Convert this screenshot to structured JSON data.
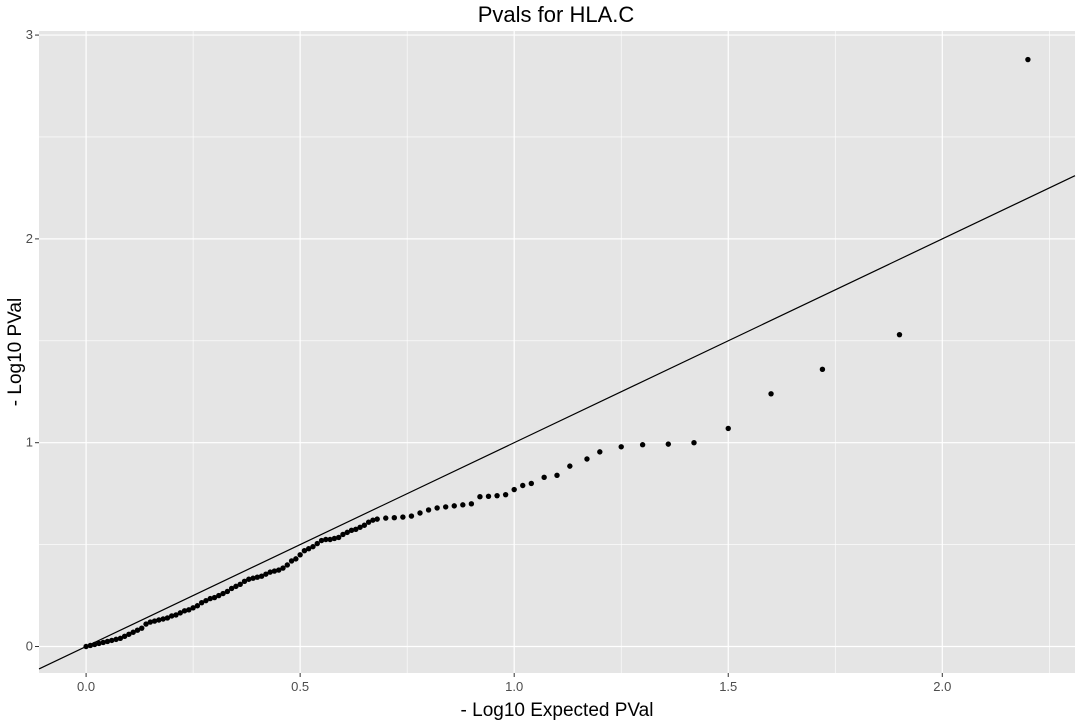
{
  "chart_data": {
    "type": "scatter",
    "title": "Pvals for HLA.C",
    "xlabel": "- Log10 Expected PVal",
    "ylabel": "- Log10 PVal",
    "xlim": [
      -0.11,
      2.31
    ],
    "ylim": [
      -0.13,
      3.02
    ],
    "x_ticks": [
      "0.0",
      "0.5",
      "1.0",
      "1.5",
      "2.0"
    ],
    "x_tick_values": [
      0.0,
      0.5,
      1.0,
      1.5,
      2.0
    ],
    "y_ticks": [
      "0",
      "1",
      "2",
      "3"
    ],
    "y_tick_values": [
      0,
      1,
      2,
      3
    ],
    "grid": true,
    "background_color": "#e5e5e5",
    "grid_color": "#ffffff",
    "point_color": "#000000",
    "reference_line": {
      "slope": 1,
      "intercept": 0,
      "color": "#000000"
    },
    "points": [
      {
        "x": 0.0,
        "y": 0.0
      },
      {
        "x": 0.01,
        "y": 0.005
      },
      {
        "x": 0.02,
        "y": 0.01
      },
      {
        "x": 0.03,
        "y": 0.015
      },
      {
        "x": 0.04,
        "y": 0.02
      },
      {
        "x": 0.05,
        "y": 0.025
      },
      {
        "x": 0.06,
        "y": 0.03
      },
      {
        "x": 0.07,
        "y": 0.035
      },
      {
        "x": 0.08,
        "y": 0.04
      },
      {
        "x": 0.09,
        "y": 0.05
      },
      {
        "x": 0.1,
        "y": 0.06
      },
      {
        "x": 0.11,
        "y": 0.07
      },
      {
        "x": 0.12,
        "y": 0.08
      },
      {
        "x": 0.13,
        "y": 0.09
      },
      {
        "x": 0.14,
        "y": 0.11
      },
      {
        "x": 0.15,
        "y": 0.12
      },
      {
        "x": 0.16,
        "y": 0.125
      },
      {
        "x": 0.17,
        "y": 0.13
      },
      {
        "x": 0.18,
        "y": 0.135
      },
      {
        "x": 0.19,
        "y": 0.14
      },
      {
        "x": 0.2,
        "y": 0.15
      },
      {
        "x": 0.21,
        "y": 0.155
      },
      {
        "x": 0.22,
        "y": 0.165
      },
      {
        "x": 0.23,
        "y": 0.175
      },
      {
        "x": 0.24,
        "y": 0.18
      },
      {
        "x": 0.25,
        "y": 0.19
      },
      {
        "x": 0.26,
        "y": 0.2
      },
      {
        "x": 0.27,
        "y": 0.215
      },
      {
        "x": 0.28,
        "y": 0.225
      },
      {
        "x": 0.29,
        "y": 0.235
      },
      {
        "x": 0.3,
        "y": 0.24
      },
      {
        "x": 0.31,
        "y": 0.25
      },
      {
        "x": 0.32,
        "y": 0.26
      },
      {
        "x": 0.33,
        "y": 0.27
      },
      {
        "x": 0.34,
        "y": 0.285
      },
      {
        "x": 0.35,
        "y": 0.295
      },
      {
        "x": 0.36,
        "y": 0.305
      },
      {
        "x": 0.37,
        "y": 0.32
      },
      {
        "x": 0.38,
        "y": 0.33
      },
      {
        "x": 0.39,
        "y": 0.335
      },
      {
        "x": 0.4,
        "y": 0.34
      },
      {
        "x": 0.41,
        "y": 0.345
      },
      {
        "x": 0.42,
        "y": 0.355
      },
      {
        "x": 0.43,
        "y": 0.365
      },
      {
        "x": 0.44,
        "y": 0.37
      },
      {
        "x": 0.45,
        "y": 0.375
      },
      {
        "x": 0.46,
        "y": 0.385
      },
      {
        "x": 0.47,
        "y": 0.4
      },
      {
        "x": 0.48,
        "y": 0.42
      },
      {
        "x": 0.49,
        "y": 0.43
      },
      {
        "x": 0.5,
        "y": 0.45
      },
      {
        "x": 0.51,
        "y": 0.47
      },
      {
        "x": 0.52,
        "y": 0.48
      },
      {
        "x": 0.53,
        "y": 0.49
      },
      {
        "x": 0.54,
        "y": 0.505
      },
      {
        "x": 0.55,
        "y": 0.52
      },
      {
        "x": 0.56,
        "y": 0.525
      },
      {
        "x": 0.57,
        "y": 0.525
      },
      {
        "x": 0.58,
        "y": 0.53
      },
      {
        "x": 0.59,
        "y": 0.535
      },
      {
        "x": 0.6,
        "y": 0.55
      },
      {
        "x": 0.61,
        "y": 0.56
      },
      {
        "x": 0.62,
        "y": 0.57
      },
      {
        "x": 0.63,
        "y": 0.575
      },
      {
        "x": 0.64,
        "y": 0.585
      },
      {
        "x": 0.65,
        "y": 0.595
      },
      {
        "x": 0.66,
        "y": 0.61
      },
      {
        "x": 0.67,
        "y": 0.62
      },
      {
        "x": 0.68,
        "y": 0.625
      },
      {
        "x": 0.7,
        "y": 0.63
      },
      {
        "x": 0.72,
        "y": 0.632
      },
      {
        "x": 0.74,
        "y": 0.635
      },
      {
        "x": 0.76,
        "y": 0.64
      },
      {
        "x": 0.78,
        "y": 0.655
      },
      {
        "x": 0.8,
        "y": 0.67
      },
      {
        "x": 0.82,
        "y": 0.68
      },
      {
        "x": 0.84,
        "y": 0.685
      },
      {
        "x": 0.86,
        "y": 0.69
      },
      {
        "x": 0.88,
        "y": 0.695
      },
      {
        "x": 0.9,
        "y": 0.7
      },
      {
        "x": 0.92,
        "y": 0.735
      },
      {
        "x": 0.94,
        "y": 0.737
      },
      {
        "x": 0.96,
        "y": 0.74
      },
      {
        "x": 0.98,
        "y": 0.745
      },
      {
        "x": 1.0,
        "y": 0.77
      },
      {
        "x": 1.02,
        "y": 0.79
      },
      {
        "x": 1.04,
        "y": 0.8
      },
      {
        "x": 1.07,
        "y": 0.83
      },
      {
        "x": 1.1,
        "y": 0.84
      },
      {
        "x": 1.13,
        "y": 0.885
      },
      {
        "x": 1.17,
        "y": 0.92
      },
      {
        "x": 1.2,
        "y": 0.955
      },
      {
        "x": 1.25,
        "y": 0.98
      },
      {
        "x": 1.3,
        "y": 0.99
      },
      {
        "x": 1.36,
        "y": 0.993
      },
      {
        "x": 1.42,
        "y": 1.0
      },
      {
        "x": 1.5,
        "y": 1.07
      },
      {
        "x": 1.6,
        "y": 1.24
      },
      {
        "x": 1.72,
        "y": 1.36
      },
      {
        "x": 1.9,
        "y": 1.53
      },
      {
        "x": 2.2,
        "y": 2.88
      }
    ]
  }
}
